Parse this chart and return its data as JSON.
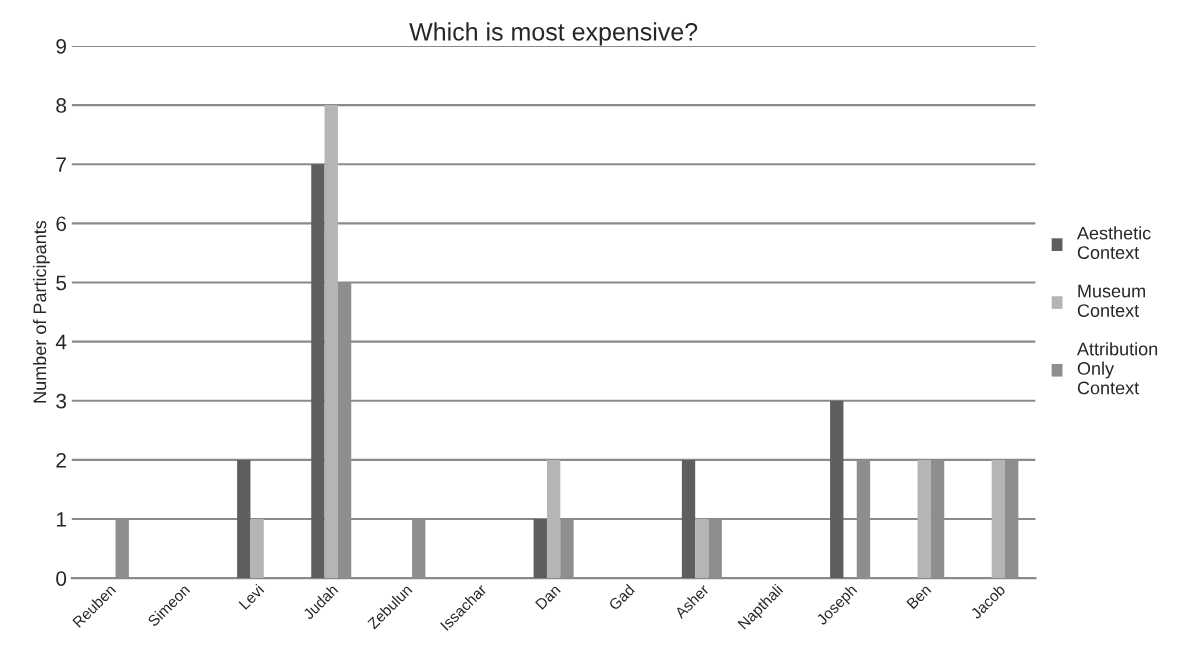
{
  "chart_data": {
    "type": "bar",
    "title": "Which is most expensive?",
    "ylabel": "Number of Participants",
    "categories": [
      "Reuben",
      "Simeon",
      "Levi",
      "Judah",
      "Zebulun",
      "Issachar",
      "Dan",
      "Gad",
      "Asher",
      "Napthali",
      "Joseph",
      "Ben",
      "Jacob"
    ],
    "series": [
      {
        "name": "Aesthetic Context",
        "color": "#5e5e5e",
        "values": [
          0,
          0,
          2,
          7,
          0,
          0,
          1,
          0,
          2,
          0,
          3,
          0,
          0
        ]
      },
      {
        "name": "Museum Context",
        "color": "#b5b5b5",
        "values": [
          0,
          0,
          1,
          8,
          0,
          0,
          2,
          0,
          1,
          0,
          0,
          2,
          2
        ]
      },
      {
        "name": "Attribution Only Context",
        "color": "#8e8e8e",
        "values": [
          1,
          0,
          0,
          5,
          1,
          0,
          1,
          0,
          1,
          0,
          2,
          2,
          2
        ]
      }
    ],
    "ylim": [
      0,
      9
    ],
    "yticks": [
      0,
      1,
      2,
      3,
      4,
      5,
      6,
      7,
      8,
      9
    ],
    "grid": "y",
    "legend": "right"
  }
}
